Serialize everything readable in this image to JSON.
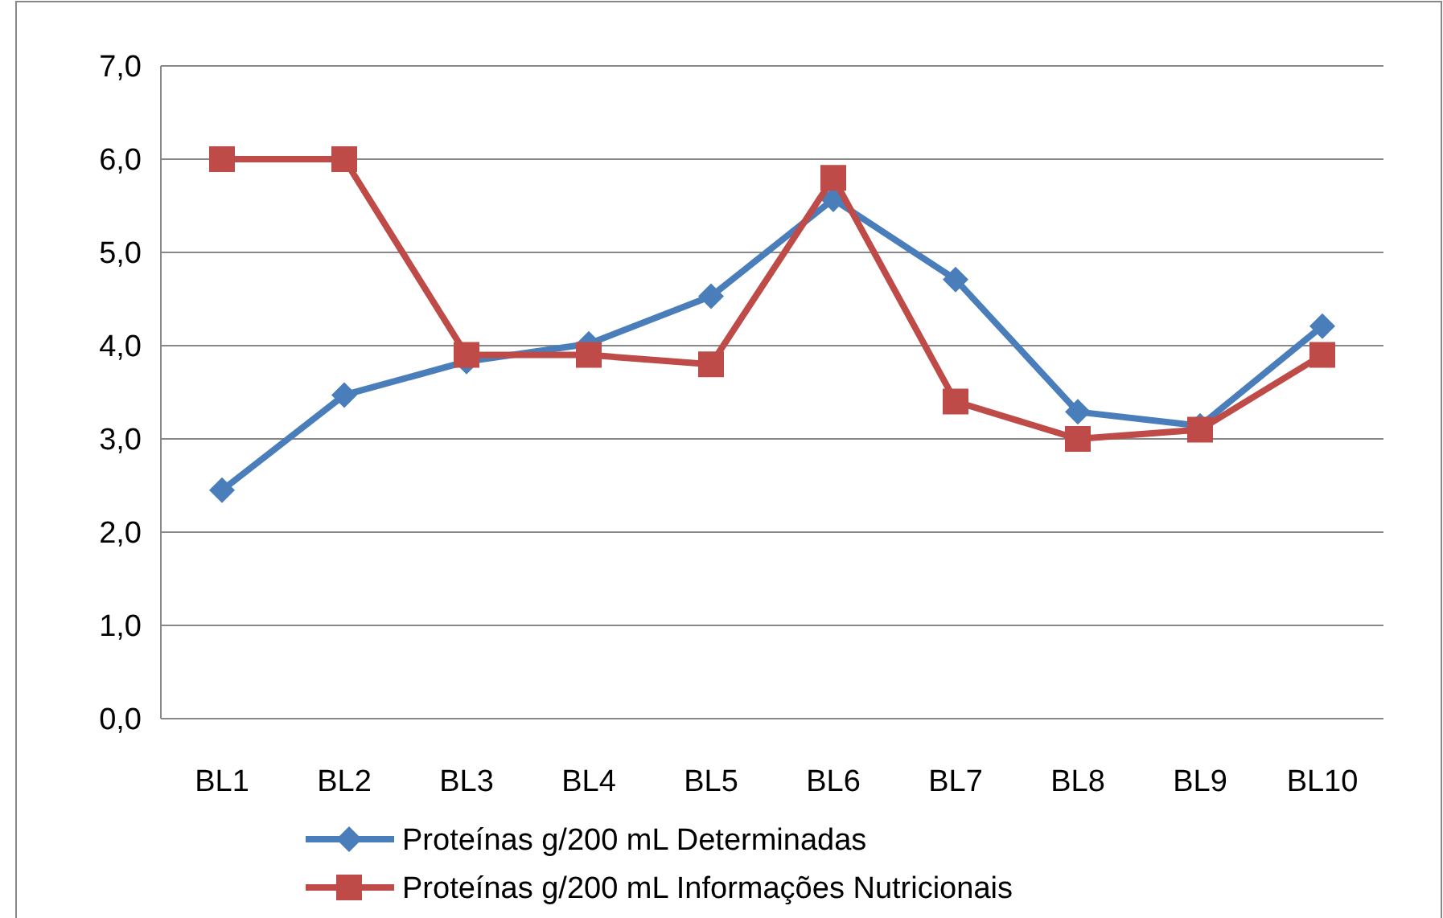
{
  "chart_data": {
    "type": "line",
    "categories": [
      "BL1",
      "BL2",
      "BL3",
      "BL4",
      "BL5",
      "BL6",
      "BL7",
      "BL8",
      "BL9",
      "BL10"
    ],
    "series": [
      {
        "name": "Proteínas g/200 mL Determinadas",
        "color": "#4a7ebb",
        "marker": "diamond",
        "values": [
          2.45,
          3.47,
          3.83,
          4.02,
          4.53,
          5.57,
          4.71,
          3.29,
          3.14,
          4.21
        ]
      },
      {
        "name": "Proteínas g/200 mL Informações Nutricionais",
        "color": "#be4b48",
        "marker": "square",
        "values": [
          6.0,
          6.0,
          3.9,
          3.9,
          3.8,
          5.8,
          3.4,
          3.0,
          3.1,
          3.9
        ]
      }
    ],
    "ylim": [
      0,
      7
    ],
    "yticks": [
      {
        "value": 0,
        "label": "0,0"
      },
      {
        "value": 1,
        "label": "1,0"
      },
      {
        "value": 2,
        "label": "2,0"
      },
      {
        "value": 3,
        "label": "3,0"
      },
      {
        "value": 4,
        "label": "4,0"
      },
      {
        "value": 5,
        "label": "5,0"
      },
      {
        "value": 6,
        "label": "6,0"
      },
      {
        "value": 7,
        "label": "7,0"
      }
    ],
    "grid": "y",
    "legend": "bottom",
    "line_style": "solid"
  }
}
